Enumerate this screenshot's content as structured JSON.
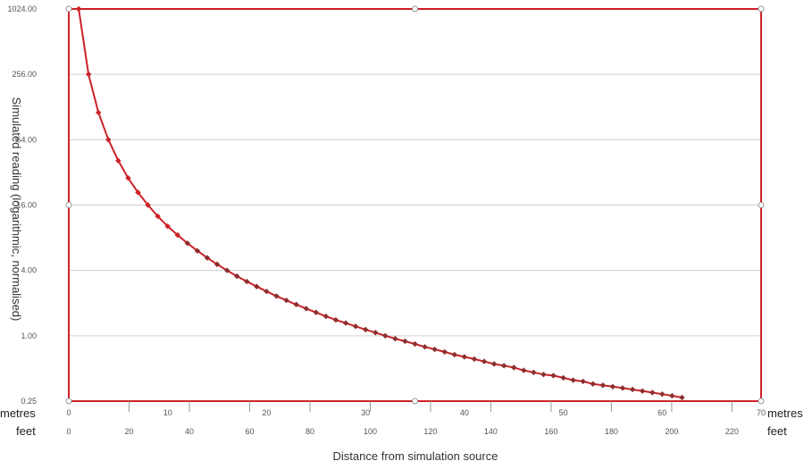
{
  "chart_data": {
    "type": "line",
    "title": "",
    "xlabel": "Distance from simulation source",
    "ylabel": "Simulated reading (logarithmic, normalised)",
    "y_scale": "log2",
    "ylim": [
      0.25,
      1024
    ],
    "xlim": [
      0,
      70
    ],
    "y_ticks": [
      "1024.00",
      "256.00",
      "64.00",
      "16.00",
      "4.00",
      "1.00",
      "0.25"
    ],
    "x_ticks_metres": [
      "0",
      "10",
      "20",
      "30",
      "40",
      "50",
      "60",
      "70"
    ],
    "x_ticks_feet": [
      "0",
      "20",
      "40",
      "60",
      "80",
      "100",
      "120",
      "140",
      "160",
      "180",
      "200",
      "220"
    ],
    "x_unit_metres": "metres",
    "x_unit_feet": "feet",
    "grid": true,
    "line_color": "#cc2228",
    "series": [
      {
        "x": [
          1,
          2,
          3,
          4,
          5,
          6,
          7,
          8,
          9,
          10,
          11,
          12,
          13,
          14,
          15,
          16,
          17,
          18,
          19,
          20,
          21,
          22,
          23,
          24,
          25,
          26,
          27,
          28,
          29,
          30,
          31,
          32,
          33,
          34,
          35,
          36,
          37,
          38,
          39,
          40,
          41,
          42,
          43,
          44,
          45,
          46,
          47,
          48,
          49,
          50,
          51,
          52,
          53,
          54,
          55,
          56,
          57,
          58,
          59,
          60,
          61,
          62
        ],
        "values": [
          1024,
          256,
          113.8,
          64,
          41,
          28.4,
          20.9,
          16,
          12.6,
          10.2,
          8.46,
          7.11,
          6.06,
          5.22,
          4.55,
          4.0,
          3.54,
          3.16,
          2.84,
          2.56,
          2.32,
          2.12,
          1.94,
          1.78,
          1.64,
          1.51,
          1.4,
          1.31,
          1.22,
          1.14,
          1.07,
          1.0,
          0.94,
          0.89,
          0.84,
          0.79,
          0.75,
          0.71,
          0.67,
          0.64,
          0.61,
          0.58,
          0.55,
          0.53,
          0.51,
          0.48,
          0.46,
          0.44,
          0.43,
          0.41,
          0.39,
          0.38,
          0.36,
          0.35,
          0.34,
          0.33,
          0.32,
          0.31,
          0.3,
          0.29,
          0.28,
          0.27
        ]
      }
    ]
  }
}
